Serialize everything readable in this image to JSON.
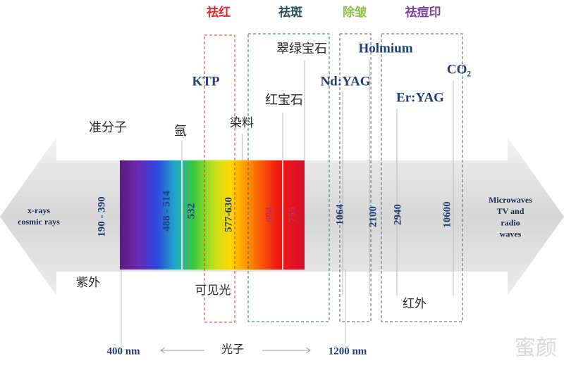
{
  "treatments": [
    "祛红",
    "祛斑",
    "除皱",
    "祛痘印"
  ],
  "sources": {
    "alexandrite": "翠绿宝石",
    "holmium": "Holmium",
    "co2": "CO₂",
    "ktp": "KTP",
    "ndyag": "Nd:YAG",
    "eryag": "Er:YAG",
    "ruby": "红宝石",
    "excimer": "准分子",
    "argon": "氩",
    "dye": "染料"
  },
  "wavelengths": [
    "190 - 390",
    "488 - 514",
    "532",
    "577-630",
    "694",
    "755",
    "1064",
    "2100",
    "2940",
    "10600"
  ],
  "spectrum": {
    "left": "x-rays\ncosmic rays",
    "right": "Microwaves\nTV and\nradio\nwaves",
    "uv": "紫外",
    "visible": "可见光",
    "ir": "红外"
  },
  "axis": {
    "start": "400 nm",
    "middle": "光子",
    "end": "1200 nm"
  },
  "watermark": "蜜颜"
}
